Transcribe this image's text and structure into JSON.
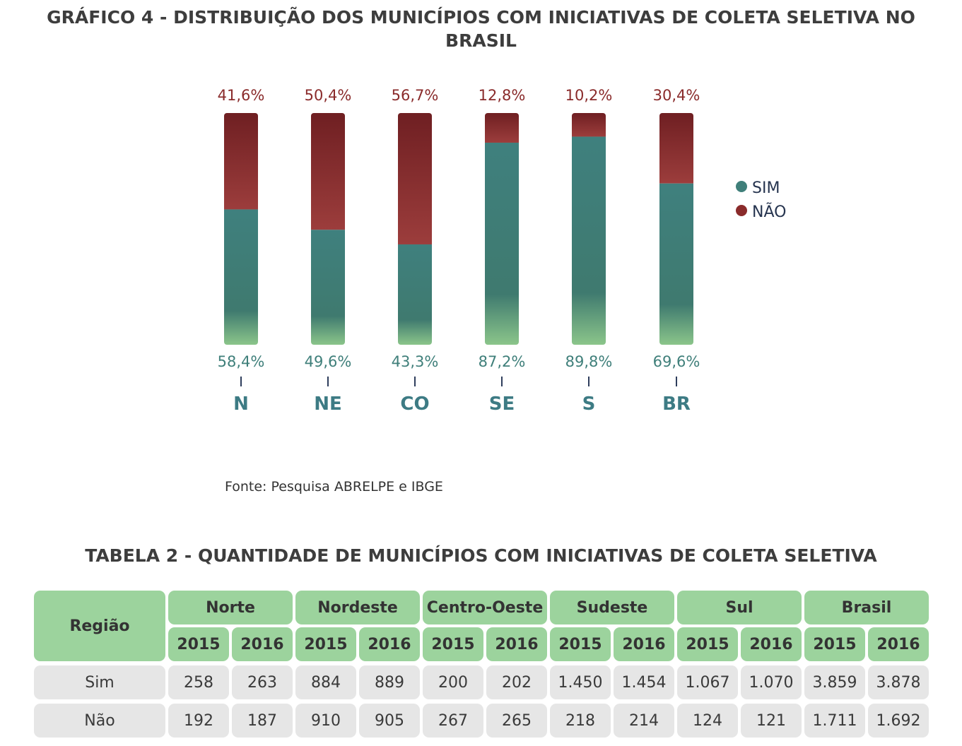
{
  "chart_title": "GRÁFICO 4 - DISTRIBUIÇÃO DOS MUNICÍPIOS COM INICIATIVAS DE COLETA SELETIVA NO BRASIL",
  "chart_data": {
    "type": "bar",
    "stacked": true,
    "categories": [
      "N",
      "NE",
      "CO",
      "SE",
      "S",
      "BR"
    ],
    "series": [
      {
        "name": "SIM",
        "values": [
          58.4,
          49.6,
          43.3,
          87.2,
          89.8,
          69.6
        ],
        "color": "#3f7f7a"
      },
      {
        "name": "NÃO",
        "values": [
          41.6,
          50.4,
          56.7,
          12.8,
          10.2,
          30.4
        ],
        "color": "#8a2b2b"
      }
    ],
    "sim_labels": [
      "58,4%",
      "49,6%",
      "43,3%",
      "87,2%",
      "89,8%",
      "69,6%"
    ],
    "nao_labels": [
      "41,6%",
      "50,4%",
      "56,7%",
      "12,8%",
      "10,2%",
      "30,4%"
    ],
    "ylim": [
      0,
      100
    ],
    "legend_position": "right",
    "grid": false
  },
  "colors": {
    "sim_label": "#3f7f7a",
    "nao_label": "#8a2b2b",
    "category_label": "#3d7b84",
    "axis": "#2e3d5c"
  },
  "source": "Fonte: Pesquisa ABRELPE e IBGE",
  "table_title": "TABELA 2 - QUANTIDADE DE MUNICÍPIOS COM INICIATIVAS DE COLETA SELETIVA",
  "table": {
    "corner": "Região",
    "groups": [
      "Norte",
      "Nordeste",
      "Centro-Oeste",
      "Sudeste",
      "Sul",
      "Brasil"
    ],
    "years": [
      "2015",
      "2016",
      "2015",
      "2016",
      "2015",
      "2016",
      "2015",
      "2016",
      "2015",
      "2016",
      "2015",
      "2016"
    ],
    "rows": [
      {
        "label": "Sim",
        "values": [
          "258",
          "263",
          "884",
          "889",
          "200",
          "202",
          "1.450",
          "1.454",
          "1.067",
          "1.070",
          "3.859",
          "3.878"
        ]
      },
      {
        "label": "Não",
        "values": [
          "192",
          "187",
          "910",
          "905",
          "267",
          "265",
          "218",
          "214",
          "124",
          "121",
          "1.711",
          "1.692"
        ]
      }
    ]
  }
}
